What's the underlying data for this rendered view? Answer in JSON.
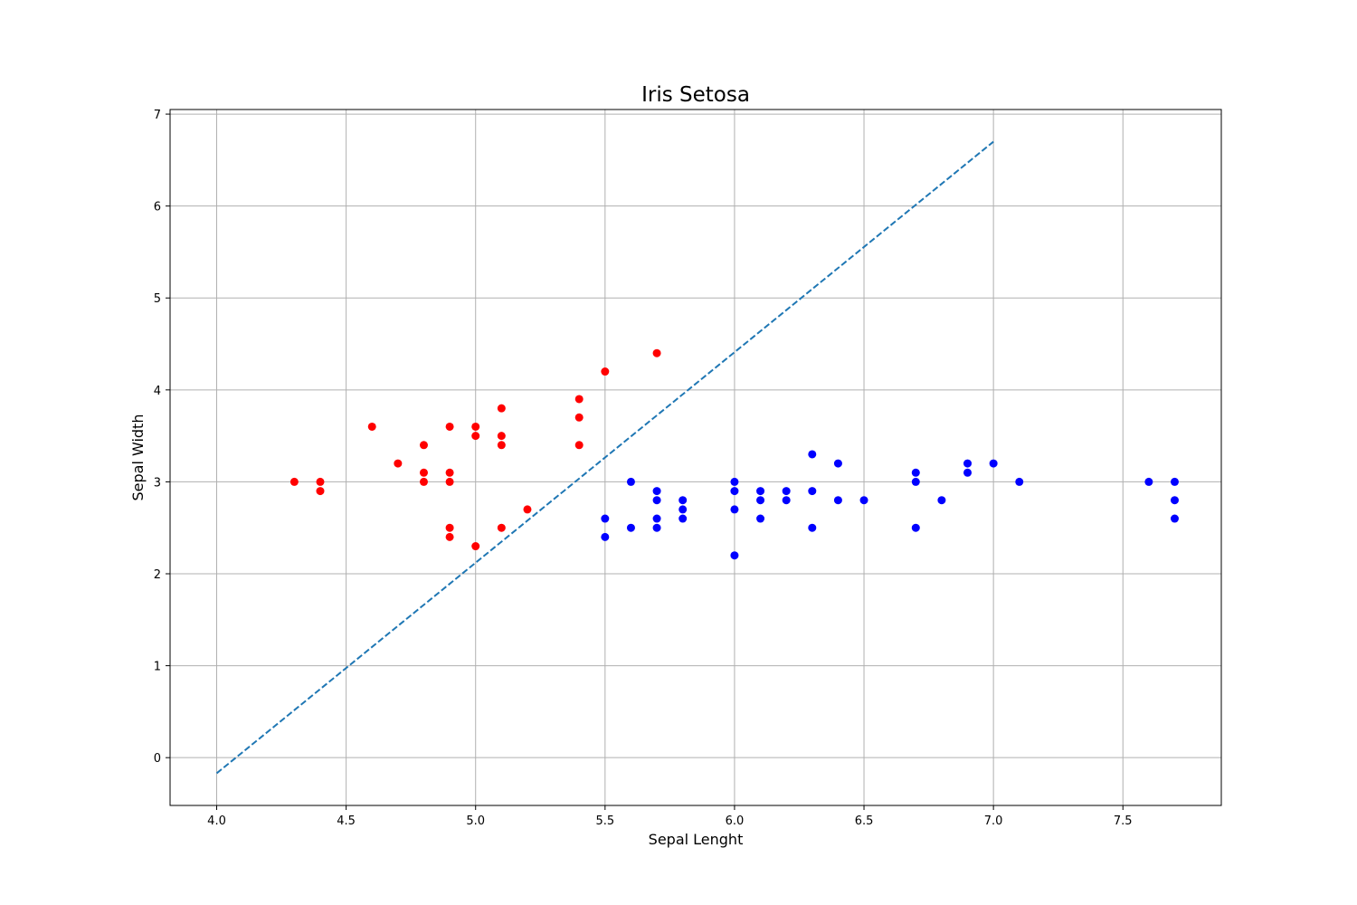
{
  "chart_data": {
    "type": "scatter",
    "title": "Iris Setosa",
    "xlabel": "Sepal Lenght",
    "ylabel": "Sepal Width",
    "xlim": [
      3.82,
      7.88
    ],
    "ylim": [
      -0.52,
      7.05
    ],
    "xticks": [
      4.0,
      4.5,
      5.0,
      5.5,
      6.0,
      6.5,
      7.0,
      7.5
    ],
    "xtick_labels": [
      "4.0",
      "4.5",
      "5.0",
      "5.5",
      "6.0",
      "6.5",
      "7.0",
      "7.5"
    ],
    "yticks": [
      0,
      1,
      2,
      3,
      4,
      5,
      6,
      7
    ],
    "ytick_labels": [
      "0",
      "1",
      "2",
      "3",
      "4",
      "5",
      "6",
      "7"
    ],
    "grid": true,
    "series": [
      {
        "color": "#ff0000",
        "points": [
          [
            4.3,
            3.0
          ],
          [
            4.4,
            3.0
          ],
          [
            4.4,
            2.9
          ],
          [
            4.6,
            3.6
          ],
          [
            4.7,
            3.2
          ],
          [
            4.8,
            3.4
          ],
          [
            4.8,
            3.1
          ],
          [
            4.8,
            3.0
          ],
          [
            4.9,
            3.6
          ],
          [
            4.9,
            3.1
          ],
          [
            4.9,
            3.0
          ],
          [
            4.9,
            2.5
          ],
          [
            4.9,
            2.4
          ],
          [
            5.0,
            3.6
          ],
          [
            5.0,
            3.5
          ],
          [
            5.0,
            2.3
          ],
          [
            5.1,
            3.8
          ],
          [
            5.1,
            3.5
          ],
          [
            5.1,
            3.4
          ],
          [
            5.1,
            2.5
          ],
          [
            5.2,
            2.7
          ],
          [
            5.4,
            3.9
          ],
          [
            5.4,
            3.7
          ],
          [
            5.4,
            3.4
          ],
          [
            5.5,
            4.2
          ],
          [
            5.7,
            4.4
          ]
        ]
      },
      {
        "color": "#0000ff",
        "points": [
          [
            5.5,
            2.6
          ],
          [
            5.5,
            2.4
          ],
          [
            5.6,
            3.0
          ],
          [
            5.6,
            2.5
          ],
          [
            5.7,
            2.9
          ],
          [
            5.7,
            2.8
          ],
          [
            5.7,
            2.6
          ],
          [
            5.7,
            2.5
          ],
          [
            5.8,
            2.8
          ],
          [
            5.8,
            2.7
          ],
          [
            5.8,
            2.6
          ],
          [
            6.0,
            3.0
          ],
          [
            6.0,
            2.9
          ],
          [
            6.0,
            2.7
          ],
          [
            6.0,
            2.2
          ],
          [
            6.1,
            2.9
          ],
          [
            6.1,
            2.8
          ],
          [
            6.1,
            2.6
          ],
          [
            6.2,
            2.9
          ],
          [
            6.2,
            2.8
          ],
          [
            6.3,
            3.3
          ],
          [
            6.3,
            2.9
          ],
          [
            6.3,
            2.5
          ],
          [
            6.4,
            3.2
          ],
          [
            6.4,
            2.8
          ],
          [
            6.5,
            2.8
          ],
          [
            6.7,
            3.1
          ],
          [
            6.7,
            3.0
          ],
          [
            6.7,
            2.5
          ],
          [
            6.8,
            2.8
          ],
          [
            6.9,
            3.2
          ],
          [
            6.9,
            3.1
          ],
          [
            7.0,
            3.2
          ],
          [
            7.1,
            3.0
          ],
          [
            7.6,
            3.0
          ],
          [
            7.7,
            3.0
          ],
          [
            7.7,
            2.8
          ],
          [
            7.7,
            2.6
          ]
        ]
      }
    ],
    "lines": [
      {
        "style": "dashed",
        "color": "#1f77b4",
        "points": [
          [
            4.0,
            -0.17
          ],
          [
            7.0,
            6.7
          ]
        ]
      }
    ]
  }
}
